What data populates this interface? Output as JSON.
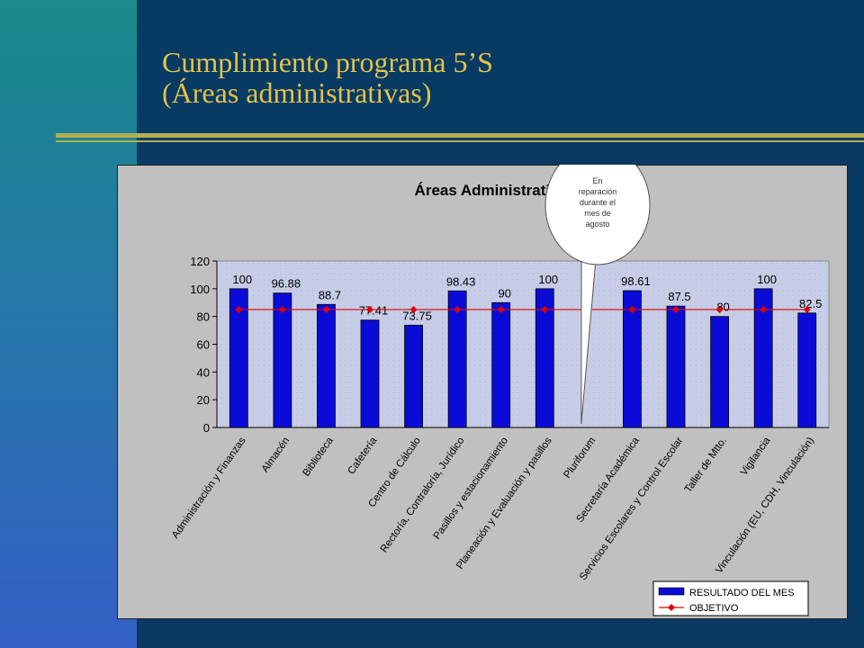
{
  "slide": {
    "title_line1": "Cumplimiento programa 5’S",
    "title_line2": "(Áreas administrativas)"
  },
  "colors": {
    "title": "#e5c24a",
    "bar": "#0b0bd8",
    "objective_line": "#e00000",
    "plot_bg": "#c7cde6",
    "chart_bg": "#c0c0c0",
    "callout_bg": "#ffffff"
  },
  "callout": {
    "lines": [
      "En",
      "reparación",
      "durante el",
      "mes de",
      "agosto"
    ]
  },
  "chart_data": {
    "type": "bar",
    "title": "Áreas Administrativas",
    "categories": [
      "Administración y Finanzas",
      "Almacén",
      "Biblioteca",
      "Cafetería",
      "Centro de Cálculo",
      "Rectoría, Contraloría, Jurídico",
      "Pasillos y estacionamiento",
      "Planeación y Evaluación y pasillos",
      "Pluriforum",
      "Secretaría Académica",
      "Servicios Escolares y Control Escolar",
      "Taller de Mtto.",
      "Vigilancia",
      "Vinculación (EU, CDH, Vinculación)"
    ],
    "series": [
      {
        "name": "RESULTADO DEL MES",
        "values": [
          100,
          96.88,
          88.7,
          77.41,
          73.75,
          98.43,
          90,
          100,
          null,
          98.61,
          87.5,
          80,
          100,
          82.5
        ],
        "labels": [
          "100",
          "96.88",
          "88.7",
          "77.41",
          "73.75",
          "98.43",
          "90",
          "100",
          "",
          "98.61",
          "87.5",
          "80",
          "100",
          "82.5"
        ]
      },
      {
        "name": "OBJETIVO",
        "values": [
          85,
          85,
          85,
          85,
          85,
          85,
          85,
          85,
          null,
          85,
          85,
          85,
          85,
          85
        ]
      }
    ],
    "yticks": [
      "0",
      "20",
      "40",
      "60",
      "80",
      "100",
      "120"
    ],
    "ylim": [
      0,
      120
    ],
    "legend_position": "bottom-right",
    "grid": false
  }
}
